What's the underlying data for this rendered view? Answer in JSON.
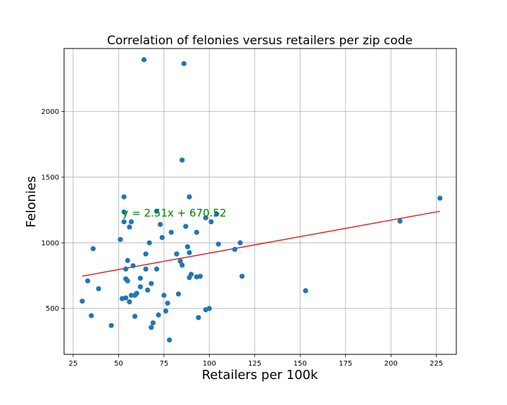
{
  "chart_data": {
    "type": "scatter",
    "title": "Correlation of felonies versus retailers per zip code",
    "xlabel": "Retailers per 100k",
    "ylabel": "Felonies",
    "xlim": [
      20,
      236
    ],
    "ylim": [
      150,
      2480
    ],
    "x_ticks": [
      25,
      50,
      75,
      100,
      125,
      150,
      175,
      200,
      225
    ],
    "y_ticks": [
      500,
      1000,
      1500,
      2000
    ],
    "grid": true,
    "point_color": "#1f77b4",
    "trend_color": "#d62728",
    "annotation_color": "#008000",
    "trendline": {
      "slope": 2.51,
      "intercept": 670.52,
      "x_range": [
        30,
        227
      ]
    },
    "annotation": {
      "text": "y = 2.51x + 670.52",
      "x": 52,
      "y": 1200
    },
    "points": [
      {
        "x": 30,
        "y": 555
      },
      {
        "x": 33,
        "y": 710
      },
      {
        "x": 35,
        "y": 445
      },
      {
        "x": 36,
        "y": 955
      },
      {
        "x": 39,
        "y": 650
      },
      {
        "x": 46,
        "y": 370
      },
      {
        "x": 51,
        "y": 1025
      },
      {
        "x": 52,
        "y": 575
      },
      {
        "x": 53,
        "y": 1235
      },
      {
        "x": 53,
        "y": 1160
      },
      {
        "x": 53,
        "y": 1350
      },
      {
        "x": 54,
        "y": 580
      },
      {
        "x": 54,
        "y": 800
      },
      {
        "x": 54,
        "y": 725
      },
      {
        "x": 55,
        "y": 865
      },
      {
        "x": 55,
        "y": 710
      },
      {
        "x": 56,
        "y": 550
      },
      {
        "x": 56,
        "y": 1120
      },
      {
        "x": 57,
        "y": 1160
      },
      {
        "x": 57,
        "y": 600
      },
      {
        "x": 58,
        "y": 825
      },
      {
        "x": 59,
        "y": 600
      },
      {
        "x": 59,
        "y": 440
      },
      {
        "x": 60,
        "y": 615
      },
      {
        "x": 62,
        "y": 730
      },
      {
        "x": 62,
        "y": 665
      },
      {
        "x": 64,
        "y": 2395
      },
      {
        "x": 65,
        "y": 800
      },
      {
        "x": 65,
        "y": 915
      },
      {
        "x": 66,
        "y": 640
      },
      {
        "x": 67,
        "y": 1000
      },
      {
        "x": 68,
        "y": 355
      },
      {
        "x": 68,
        "y": 690
      },
      {
        "x": 69,
        "y": 390
      },
      {
        "x": 71,
        "y": 1240
      },
      {
        "x": 71,
        "y": 800
      },
      {
        "x": 72,
        "y": 450
      },
      {
        "x": 73,
        "y": 1140
      },
      {
        "x": 74,
        "y": 1040
      },
      {
        "x": 75,
        "y": 600
      },
      {
        "x": 76,
        "y": 480
      },
      {
        "x": 77,
        "y": 540
      },
      {
        "x": 78,
        "y": 260
      },
      {
        "x": 79,
        "y": 1080
      },
      {
        "x": 82,
        "y": 915
      },
      {
        "x": 83,
        "y": 610
      },
      {
        "x": 84,
        "y": 860
      },
      {
        "x": 85,
        "y": 1630
      },
      {
        "x": 85,
        "y": 830
      },
      {
        "x": 86,
        "y": 2365
      },
      {
        "x": 87,
        "y": 1125
      },
      {
        "x": 88,
        "y": 970
      },
      {
        "x": 89,
        "y": 735
      },
      {
        "x": 89,
        "y": 1350
      },
      {
        "x": 89,
        "y": 925
      },
      {
        "x": 90,
        "y": 760
      },
      {
        "x": 93,
        "y": 1080
      },
      {
        "x": 93,
        "y": 740
      },
      {
        "x": 94,
        "y": 430
      },
      {
        "x": 95,
        "y": 745
      },
      {
        "x": 98,
        "y": 1190
      },
      {
        "x": 98,
        "y": 490
      },
      {
        "x": 100,
        "y": 500
      },
      {
        "x": 101,
        "y": 1160
      },
      {
        "x": 104,
        "y": 1220
      },
      {
        "x": 105,
        "y": 990
      },
      {
        "x": 114,
        "y": 950
      },
      {
        "x": 117,
        "y": 1000
      },
      {
        "x": 118,
        "y": 745
      },
      {
        "x": 153,
        "y": 635
      },
      {
        "x": 205,
        "y": 1165
      },
      {
        "x": 227,
        "y": 1340
      }
    ]
  }
}
